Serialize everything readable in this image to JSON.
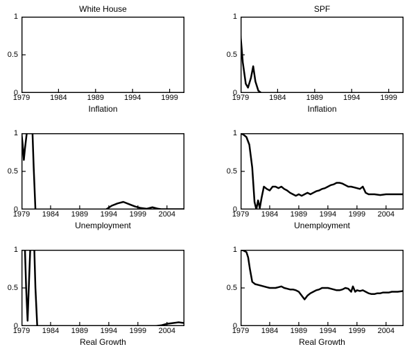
{
  "chart_data": [
    {
      "type": "line",
      "title": "White House",
      "xlabel": "Inflation",
      "xlim": [
        1979,
        2001
      ],
      "ylim": [
        0,
        1
      ],
      "xticks": [
        1979,
        1984,
        1989,
        1994,
        1999
      ],
      "yticks": [
        0,
        0.5,
        1
      ],
      "grid": false,
      "legend": false,
      "line_color": "#000000",
      "series": [
        {
          "points": [
            [
              1979,
              0
            ],
            [
              2001,
              0
            ]
          ]
        }
      ]
    },
    {
      "type": "line",
      "title": "SPF",
      "xlabel": "Inflation",
      "xlim": [
        1979,
        2001
      ],
      "ylim": [
        0,
        1
      ],
      "xticks": [
        1979,
        1984,
        1989,
        1994,
        1999
      ],
      "yticks": [
        0,
        0.5,
        1
      ],
      "grid": false,
      "legend": false,
      "line_color": "#000000",
      "series": [
        {
          "points": [
            [
              1979,
              0.75
            ],
            [
              1979.3,
              0.4
            ],
            [
              1979.7,
              0.12
            ],
            [
              1980,
              0.07
            ],
            [
              1980.4,
              0.2
            ],
            [
              1980.7,
              0.35
            ],
            [
              1981,
              0.15
            ],
            [
              1981.4,
              0.03
            ],
            [
              1981.8,
              0
            ],
            [
              2001,
              0
            ]
          ]
        }
      ]
    },
    {
      "type": "line",
      "xlabel": "Unemployment",
      "xlim": [
        1979,
        2007
      ],
      "ylim": [
        0,
        1
      ],
      "xticks": [
        1979,
        1984,
        1989,
        1994,
        1999,
        2004
      ],
      "yticks": [
        0,
        0.5,
        1
      ],
      "grid": false,
      "legend": false,
      "line_color": "#000000",
      "series": [
        {
          "points": [
            [
              1979,
              1
            ],
            [
              1979.2,
              0.85
            ],
            [
              1979.4,
              0.65
            ],
            [
              1979.6,
              0.8
            ],
            [
              1979.9,
              1
            ],
            [
              1980.9,
              1
            ],
            [
              1981.1,
              0.55
            ],
            [
              1981.4,
              0
            ],
            [
              1993.5,
              0
            ],
            [
              1994.5,
              0.05
            ],
            [
              1995.5,
              0.08
            ],
            [
              1996.5,
              0.1
            ],
            [
              1997.5,
              0.07
            ],
            [
              1998.5,
              0.04
            ],
            [
              1999.5,
              0.02
            ],
            [
              2000.5,
              0.01
            ],
            [
              2001.5,
              0.03
            ],
            [
              2002.5,
              0.01
            ],
            [
              2003,
              0.005
            ],
            [
              2007,
              0.005
            ]
          ]
        }
      ]
    },
    {
      "type": "line",
      "xlabel": "Unemployment",
      "xlim": [
        1979,
        2007
      ],
      "ylim": [
        0,
        1
      ],
      "xticks": [
        1979,
        1984,
        1989,
        1994,
        1999,
        2004
      ],
      "yticks": [
        0,
        0.5,
        1
      ],
      "grid": false,
      "legend": false,
      "line_color": "#000000",
      "series": [
        {
          "points": [
            [
              1979,
              1
            ],
            [
              1979.5,
              0.98
            ],
            [
              1980,
              0.95
            ],
            [
              1980.5,
              0.85
            ],
            [
              1981,
              0.55
            ],
            [
              1981.4,
              0.1
            ],
            [
              1981.7,
              0
            ],
            [
              1982,
              0.12
            ],
            [
              1982.3,
              0.02
            ],
            [
              1982.6,
              0.15
            ],
            [
              1983,
              0.3
            ],
            [
              1983.5,
              0.27
            ],
            [
              1984,
              0.25
            ],
            [
              1984.5,
              0.3
            ],
            [
              1985,
              0.3
            ],
            [
              1985.5,
              0.28
            ],
            [
              1986,
              0.3
            ],
            [
              1986.5,
              0.27
            ],
            [
              1987,
              0.25
            ],
            [
              1987.5,
              0.22
            ],
            [
              1988,
              0.2
            ],
            [
              1988.5,
              0.18
            ],
            [
              1989,
              0.2
            ],
            [
              1989.5,
              0.18
            ],
            [
              1990,
              0.2
            ],
            [
              1990.5,
              0.22
            ],
            [
              1991,
              0.2
            ],
            [
              1991.5,
              0.22
            ],
            [
              1992,
              0.24
            ],
            [
              1992.5,
              0.25
            ],
            [
              1993,
              0.27
            ],
            [
              1993.5,
              0.28
            ],
            [
              1994,
              0.3
            ],
            [
              1994.5,
              0.32
            ],
            [
              1995,
              0.33
            ],
            [
              1995.5,
              0.35
            ],
            [
              1996,
              0.35
            ],
            [
              1996.5,
              0.34
            ],
            [
              1997,
              0.32
            ],
            [
              1997.5,
              0.3
            ],
            [
              1998,
              0.3
            ],
            [
              1998.5,
              0.29
            ],
            [
              1999,
              0.28
            ],
            [
              1999.5,
              0.27
            ],
            [
              2000,
              0.3
            ],
            [
              2000.5,
              0.22
            ],
            [
              2001,
              0.2
            ],
            [
              2002,
              0.2
            ],
            [
              2003,
              0.19
            ],
            [
              2004,
              0.2
            ],
            [
              2005,
              0.2
            ],
            [
              2006,
              0.2
            ],
            [
              2007,
              0.2
            ]
          ]
        }
      ]
    },
    {
      "type": "line",
      "xlabel": "Real Growth",
      "xlim": [
        1979,
        2007
      ],
      "ylim": [
        0,
        1
      ],
      "xticks": [
        1979,
        1984,
        1989,
        1994,
        1999,
        2004
      ],
      "yticks": [
        0,
        0.5,
        1
      ],
      "grid": false,
      "legend": false,
      "line_color": "#000000",
      "series": [
        {
          "points": [
            [
              1979,
              1
            ],
            [
              1979.6,
              1
            ],
            [
              1979.8,
              0.5
            ],
            [
              1980.05,
              0.07
            ],
            [
              1980.25,
              0.5
            ],
            [
              1980.5,
              1
            ],
            [
              1981.2,
              1
            ],
            [
              1981.4,
              0.5
            ],
            [
              1981.7,
              0
            ],
            [
              2002,
              0
            ],
            [
              2003,
              0.01
            ],
            [
              2004,
              0.03
            ],
            [
              2005,
              0.04
            ],
            [
              2006,
              0.05
            ],
            [
              2007,
              0.04
            ]
          ]
        }
      ]
    },
    {
      "type": "line",
      "xlabel": "Real Growth",
      "xlim": [
        1979,
        2007
      ],
      "ylim": [
        0,
        1
      ],
      "xticks": [
        1979,
        1984,
        1989,
        1994,
        1999,
        2004
      ],
      "yticks": [
        0,
        0.5,
        1
      ],
      "grid": false,
      "legend": false,
      "line_color": "#000000",
      "series": [
        {
          "points": [
            [
              1979,
              1
            ],
            [
              1979.5,
              0.99
            ],
            [
              1980,
              0.97
            ],
            [
              1980.3,
              0.9
            ],
            [
              1980.6,
              0.75
            ],
            [
              1981,
              0.58
            ],
            [
              1981.5,
              0.55
            ],
            [
              1982,
              0.54
            ],
            [
              1982.5,
              0.53
            ],
            [
              1983,
              0.52
            ],
            [
              1983.5,
              0.51
            ],
            [
              1984,
              0.5
            ],
            [
              1985,
              0.5
            ],
            [
              1985.5,
              0.51
            ],
            [
              1986,
              0.52
            ],
            [
              1986.5,
              0.5
            ],
            [
              1987,
              0.49
            ],
            [
              1987.5,
              0.48
            ],
            [
              1988,
              0.48
            ],
            [
              1988.5,
              0.47
            ],
            [
              1989,
              0.45
            ],
            [
              1989.5,
              0.4
            ],
            [
              1990,
              0.35
            ],
            [
              1990.5,
              0.4
            ],
            [
              1991,
              0.43
            ],
            [
              1991.5,
              0.45
            ],
            [
              1992,
              0.47
            ],
            [
              1992.5,
              0.48
            ],
            [
              1993,
              0.5
            ],
            [
              1993.5,
              0.5
            ],
            [
              1994,
              0.5
            ],
            [
              1994.5,
              0.49
            ],
            [
              1995,
              0.48
            ],
            [
              1995.5,
              0.47
            ],
            [
              1996,
              0.47
            ],
            [
              1996.5,
              0.48
            ],
            [
              1997,
              0.5
            ],
            [
              1997.5,
              0.49
            ],
            [
              1998,
              0.45
            ],
            [
              1998.3,
              0.52
            ],
            [
              1998.7,
              0.45
            ],
            [
              1999,
              0.47
            ],
            [
              1999.5,
              0.46
            ],
            [
              2000,
              0.47
            ],
            [
              2000.5,
              0.45
            ],
            [
              2001,
              0.43
            ],
            [
              2001.5,
              0.42
            ],
            [
              2002,
              0.42
            ],
            [
              2002.5,
              0.43
            ],
            [
              2003,
              0.43
            ],
            [
              2003.5,
              0.44
            ],
            [
              2004,
              0.44
            ],
            [
              2004.5,
              0.44
            ],
            [
              2005,
              0.45
            ],
            [
              2006,
              0.45
            ],
            [
              2007,
              0.46
            ]
          ]
        }
      ]
    }
  ]
}
